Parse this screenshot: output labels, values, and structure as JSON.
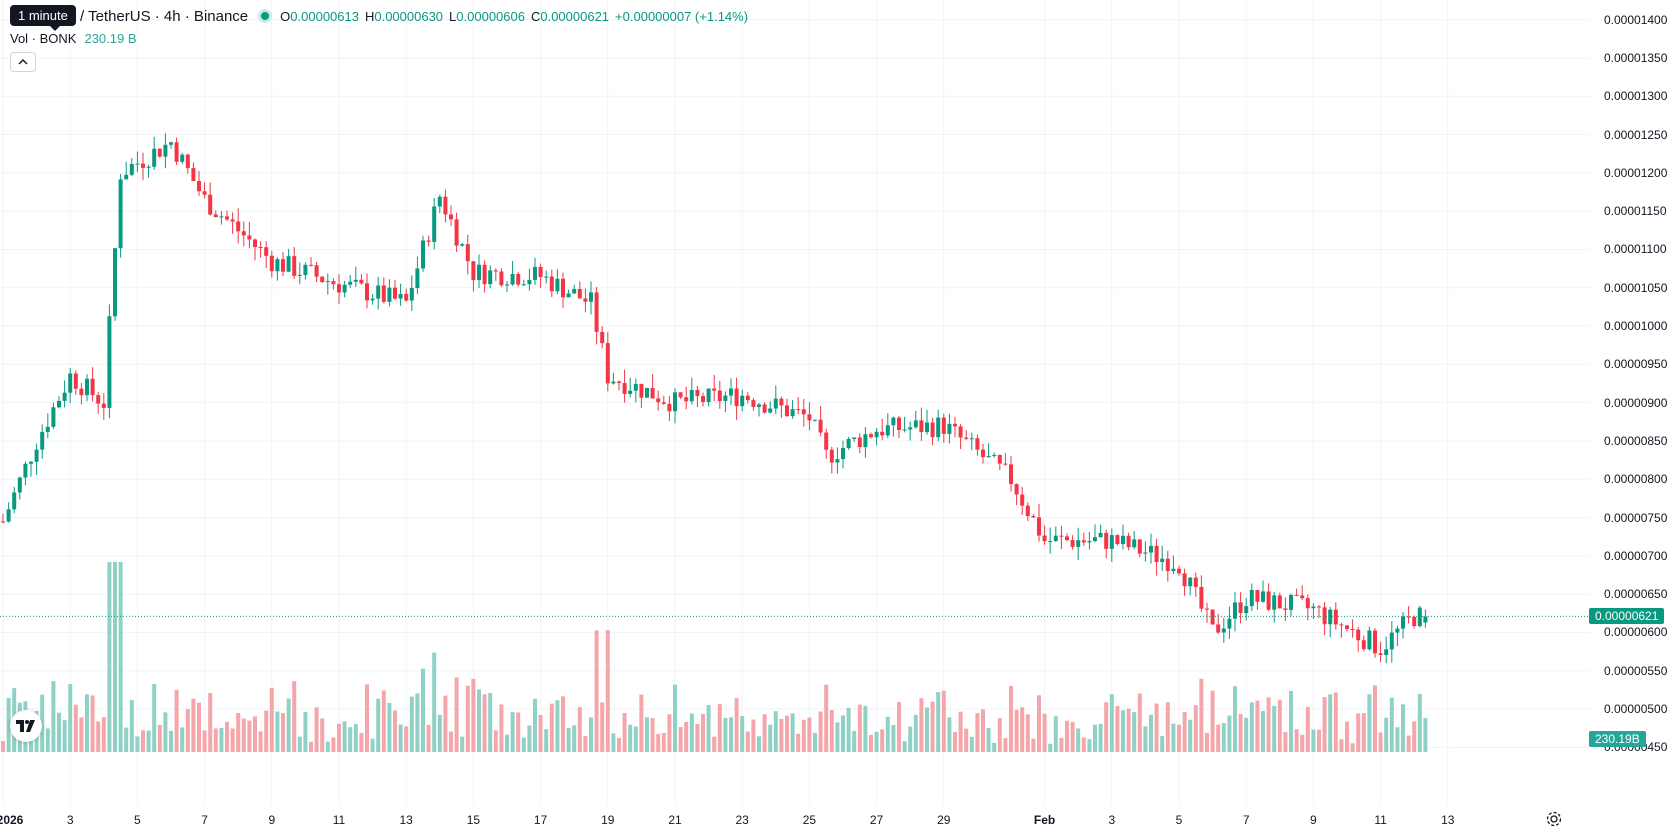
{
  "header": {
    "tooltip": "1 minute",
    "symbol": "/ TetherUS · 4h · Binance",
    "ohlc": [
      {
        "key": "O",
        "value": "0.00000613"
      },
      {
        "key": "H",
        "value": "0.00000630"
      },
      {
        "key": "L",
        "value": "0.00000606"
      },
      {
        "key": "C",
        "value": "0.00000621"
      }
    ],
    "change": "+0.00000007 (+1.14%)",
    "volume_label": "Vol · BONK",
    "volume_value": "230.19 B",
    "collapse_icon": "chevron-up-icon"
  },
  "price_axis": {
    "labels": [
      "0.00001400",
      "0.00001350",
      "0.00001300",
      "0.00001250",
      "0.00001200",
      "0.00001150",
      "0.00001100",
      "0.00001050",
      "0.00001000",
      "0.00000950",
      "0.00000900",
      "0.00000850",
      "0.00000800",
      "0.00000750",
      "0.00000700",
      "0.00000650",
      "0.00000600",
      "0.00000550",
      "0.00000500",
      "0.00000450"
    ],
    "last_price": "0.00000621",
    "volume_badge": "230.19B"
  },
  "time_axis": [
    {
      "label": "2026",
      "bold": true
    },
    {
      "label": "3"
    },
    {
      "label": "5"
    },
    {
      "label": "7"
    },
    {
      "label": "9"
    },
    {
      "label": "11"
    },
    {
      "label": "13"
    },
    {
      "label": "15"
    },
    {
      "label": "17"
    },
    {
      "label": "19"
    },
    {
      "label": "21"
    },
    {
      "label": "23"
    },
    {
      "label": "25"
    },
    {
      "label": "27"
    },
    {
      "label": "29"
    },
    {
      "label": "Feb",
      "bold": true
    },
    {
      "label": "3"
    },
    {
      "label": "5"
    },
    {
      "label": "7"
    },
    {
      "label": "9"
    },
    {
      "label": "11"
    },
    {
      "label": "13"
    }
  ],
  "colors": {
    "up": "#089981",
    "down": "#f23645",
    "up_volume": "#8fd1c5",
    "down_volume": "#f5a6ab",
    "grid": "#f0f3fa"
  },
  "chart_data": {
    "type": "candlestick",
    "interval": "4h",
    "anchors": [
      {
        "date": "2026-01-01",
        "price": 7.45e-06
      },
      {
        "date": "2026-01-02",
        "price": 8.5e-06
      },
      {
        "date": "2026-01-03",
        "price": 9.35e-06
      },
      {
        "date": "2026-01-04",
        "price": 9e-06
      },
      {
        "date": "2026-01-04.5",
        "price": 1.2e-05
      },
      {
        "date": "2026-01-06",
        "price": 1.24e-05
      },
      {
        "date": "2026-01-07",
        "price": 1.165e-05
      },
      {
        "date": "2026-01-09",
        "price": 1.085e-05
      },
      {
        "date": "2026-01-11",
        "price": 1.055e-05
      },
      {
        "date": "2026-01-13",
        "price": 1.03e-05
      },
      {
        "date": "2026-01-14",
        "price": 1.17e-05
      },
      {
        "date": "2026-01-15",
        "price": 1.07e-05
      },
      {
        "date": "2026-01-17",
        "price": 1.065e-05
      },
      {
        "date": "2026-01-18.5",
        "price": 1.03e-05
      },
      {
        "date": "2026-01-19",
        "price": 9.35e-06
      },
      {
        "date": "2026-01-21",
        "price": 9e-06
      },
      {
        "date": "2026-01-23",
        "price": 9.1e-06
      },
      {
        "date": "2026-01-25",
        "price": 8.8e-06
      },
      {
        "date": "2026-01-25.5",
        "price": 8.3e-06
      },
      {
        "date": "2026-01-27",
        "price": 8.65e-06
      },
      {
        "date": "2026-01-29",
        "price": 8.7e-06
      },
      {
        "date": "2026-01-31",
        "price": 8e-06
      },
      {
        "date": "2026-02-01",
        "price": 7.2e-06
      },
      {
        "date": "2026-02-03",
        "price": 7.2e-06
      },
      {
        "date": "2026-02-05",
        "price": 6.9e-06
      },
      {
        "date": "2026-02-06",
        "price": 6e-06
      },
      {
        "date": "2026-02-07",
        "price": 6.45e-06
      },
      {
        "date": "2026-02-09",
        "price": 6.3e-06
      },
      {
        "date": "2026-02-11",
        "price": 5.8e-06
      },
      {
        "date": "2026-02-12",
        "price": 6.21e-06
      }
    ],
    "last": {
      "open": 6.13e-06,
      "high": 6.3e-06,
      "low": 6.06e-06,
      "close": 6.21e-06
    },
    "ylim": [
      4.4e-06,
      1.41e-05
    ]
  }
}
